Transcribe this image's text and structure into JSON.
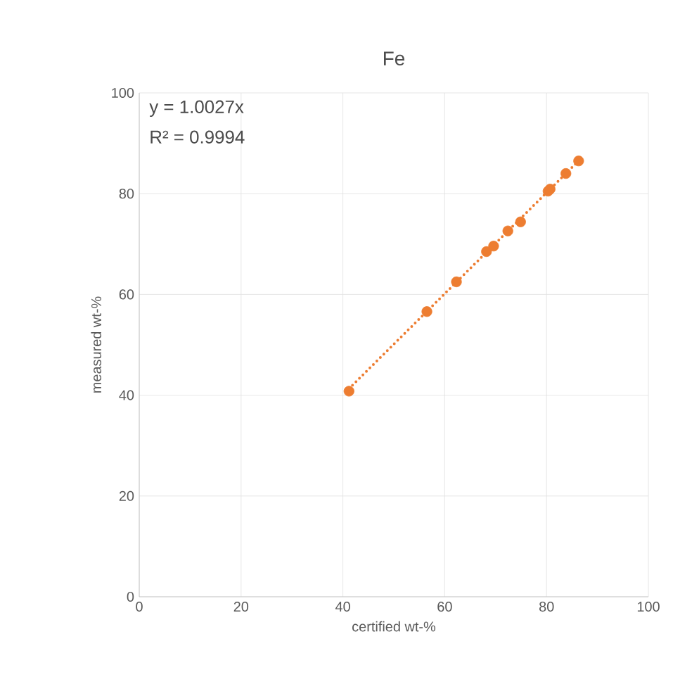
{
  "chart_data": {
    "type": "scatter",
    "title": "Fe",
    "xlabel": "certified wt-%",
    "ylabel": "measured wt-%",
    "annotations": [
      "y = 1.0027x",
      "R² = 0.9994"
    ],
    "series": [
      {
        "color": "#ed7d31",
        "marker": "circle",
        "x": [
          41.2,
          56.5,
          62.3,
          68.2,
          69.6,
          72.4,
          74.9,
          80.3,
          80.7,
          83.8,
          86.3
        ],
        "values": [
          40.8,
          56.6,
          62.5,
          68.5,
          69.6,
          72.6,
          74.4,
          80.5,
          80.9,
          84.0,
          86.5
        ]
      },
      {
        "type": "line",
        "color": "#ed7d31",
        "marker": "none",
        "line_style": "dotted",
        "x": [
          41.2,
          86.3
        ],
        "values": [
          41.3,
          86.5
        ]
      }
    ],
    "xlim": [
      0,
      100
    ],
    "ylim": [
      0,
      100
    ],
    "xticks": [
      0,
      20,
      40,
      60,
      80,
      100
    ],
    "yticks": [
      0,
      20,
      40,
      60,
      80,
      100
    ],
    "grid": true
  }
}
